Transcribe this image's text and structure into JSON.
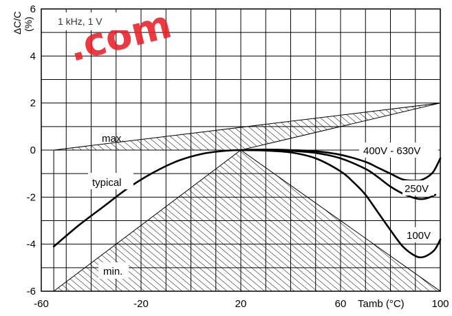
{
  "chart_data": {
    "type": "line",
    "title": "",
    "condition_label": "1 kHz, 1 V",
    "xlabel": "Tamb (°C)",
    "ylabel": "ΔC/C\n(%)",
    "xlim": [
      -60,
      100
    ],
    "ylim": [
      -6,
      6
    ],
    "x_ticks": [
      "-60",
      "-20",
      "20",
      "60",
      "100"
    ],
    "y_ticks": [
      "6",
      "4",
      "2",
      "0",
      "-2",
      "-4",
      "-6"
    ],
    "grid": true,
    "series": [
      {
        "name": "typical",
        "x": [
          -55,
          -45,
          -35,
          -25,
          -15,
          -5,
          5,
          15,
          20
        ],
        "y": [
          -4.1,
          -3.2,
          -2.4,
          -1.6,
          -0.95,
          -0.45,
          -0.15,
          -0.02,
          0
        ]
      },
      {
        "name": "400V - 630V",
        "x": [
          20,
          30,
          40,
          50,
          60,
          70,
          75,
          80,
          85,
          90,
          93,
          97,
          100
        ],
        "y": [
          0,
          0.02,
          0,
          -0.05,
          -0.2,
          -0.5,
          -0.75,
          -1.0,
          -1.25,
          -1.3,
          -1.25,
          -0.95,
          -0.35
        ]
      },
      {
        "name": "250V",
        "x": [
          20,
          30,
          40,
          50,
          60,
          70,
          75,
          80,
          85,
          90,
          93,
          96,
          98
        ],
        "y": [
          0,
          0.01,
          -0.03,
          -0.12,
          -0.35,
          -0.8,
          -1.15,
          -1.55,
          -1.85,
          -2.05,
          -2.08,
          -2.0,
          -1.9
        ]
      },
      {
        "name": "100V",
        "x": [
          20,
          30,
          40,
          50,
          60,
          65,
          70,
          75,
          80,
          85,
          90,
          93,
          96,
          98,
          100
        ],
        "y": [
          0,
          -0.02,
          -0.1,
          -0.35,
          -0.9,
          -1.35,
          -1.9,
          -2.65,
          -3.4,
          -4.1,
          -4.5,
          -4.55,
          -4.4,
          -4.2,
          -3.8
        ]
      }
    ],
    "annotations": [
      "max.",
      "typical",
      "min.",
      "400V - 630V",
      "250V",
      "100V"
    ],
    "hatched_regions": [
      {
        "name": "max",
        "x": [
          -55,
          20,
          100
        ],
        "y": [
          0,
          0,
          2.0
        ]
      },
      {
        "name": "min",
        "x": [
          -55,
          20,
          100
        ],
        "y": [
          -6,
          0,
          -6
        ]
      }
    ]
  },
  "watermark": ".com",
  "colors": {
    "line": "#000000",
    "grid": "#000000",
    "watermark": "#e8202a",
    "background": "#ffffff"
  }
}
